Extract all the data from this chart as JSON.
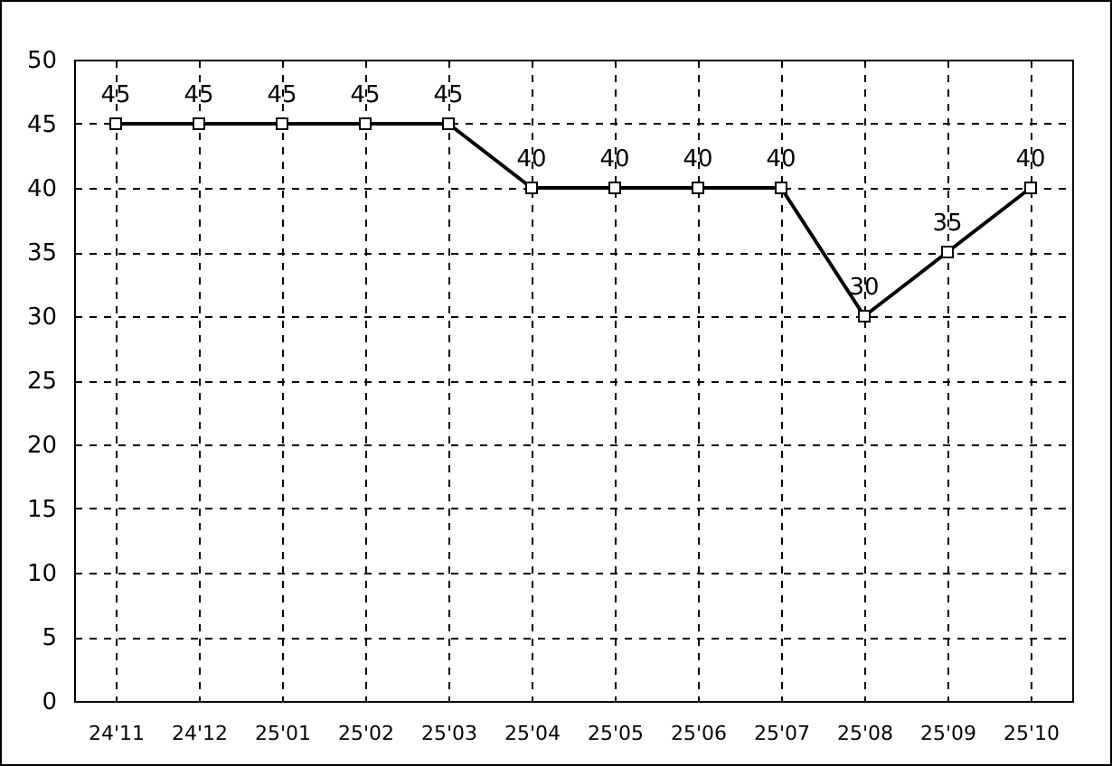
{
  "chart_data": {
    "type": "line",
    "categories": [
      "24'11",
      "24'12",
      "25'01",
      "25'02",
      "25'03",
      "25'04",
      "25'05",
      "25'06",
      "25'07",
      "25'08",
      "25'09",
      "25'10"
    ],
    "series": [
      {
        "color": "#000000",
        "values": [
          45,
          45,
          45,
          45,
          45,
          40,
          40,
          40,
          40,
          30,
          35,
          40
        ]
      }
    ],
    "ylim": [
      0,
      50
    ],
    "yticks": [
      0,
      5,
      10,
      15,
      20,
      25,
      30,
      35,
      40,
      45,
      50
    ],
    "grid": true,
    "marker": "square",
    "line_style": "solid",
    "data_labels": true
  }
}
